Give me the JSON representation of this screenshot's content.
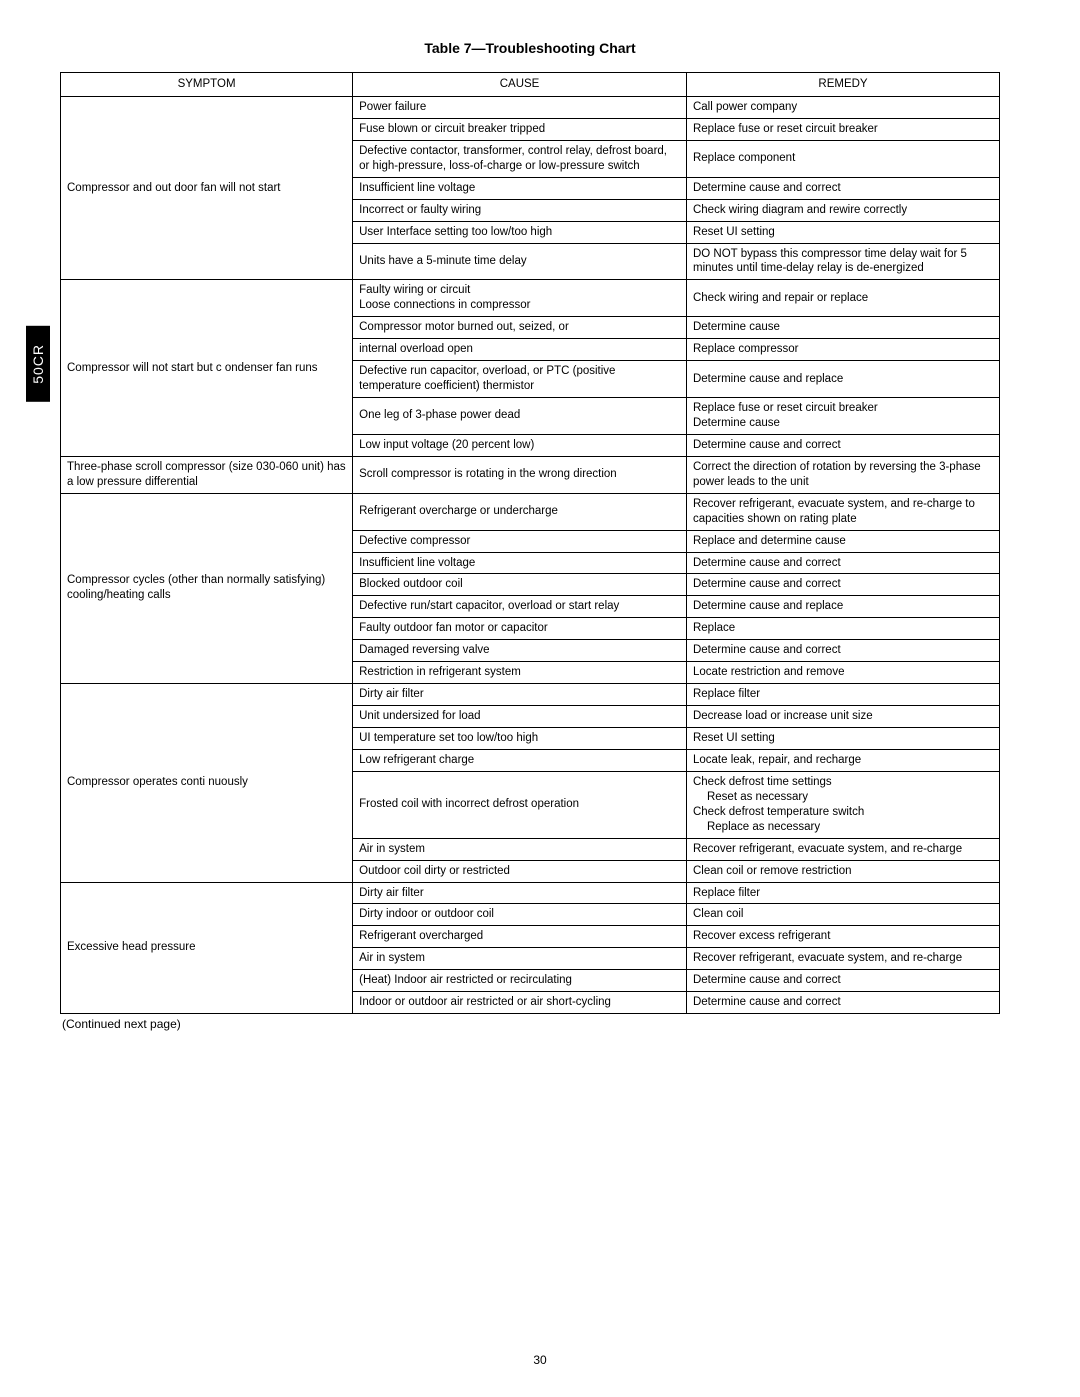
{
  "sideTab": "50CR",
  "title": "Table 7—Troubleshooting Chart",
  "headers": {
    "symptom": "SYMPTOM",
    "cause": "CAUSE",
    "remedy": "REMEDY"
  },
  "rows": [
    {
      "symptom": "Compressor and out   door fan will not start",
      "symptomRowspan": 7,
      "cause": "Power failure",
      "remedy": "Call power company"
    },
    {
      "cause": "Fuse blown or circuit breaker tripped",
      "remedy": "Replace fuse or reset circuit breaker"
    },
    {
      "cause": "Defective contactor, transformer, control relay, defrost board, or high-pressure, loss-of-charge or low-pressure switch",
      "remedy": "Replace component"
    },
    {
      "cause": "Insufficient line voltage",
      "remedy": "Determine cause and correct"
    },
    {
      "cause": "Incorrect or faulty wiring",
      "remedy": "Check wiring diagram and rewire correctly"
    },
    {
      "cause": "User Interface setting too low/too high",
      "remedy": "Reset UI setting"
    },
    {
      "cause": "Units have a 5-minute time delay",
      "remedy": "DO NOT bypass this compressor time delay wait for 5 minutes until time-delay relay is de-energized"
    },
    {
      "symptom": "Compressor will not start but c    ondenser fan runs",
      "symptomRowspan": 6,
      "cause": "Faulty wiring or circuit\nLoose connections in compressor",
      "remedy": "Check wiring and repair or replace"
    },
    {
      "cause": "Compressor motor burned out, seized, or",
      "remedy": "Determine cause"
    },
    {
      "cause": "internal overload open",
      "remedy": "Replace compressor"
    },
    {
      "cause": "Defective run capacitor, overload, or PTC (positive temperature coefficient) thermistor",
      "remedy": "Determine cause and replace"
    },
    {
      "cause": "One leg of 3-phase power dead",
      "remedy": "Replace fuse or reset circuit breaker\nDetermine cause"
    },
    {
      "cause": "Low input voltage (20 percent low)",
      "remedy": "Determine cause and correct"
    },
    {
      "symptom": "Three-phase scroll compressor (size 030-060 unit) has a low pressure differential",
      "symptomRowspan": 1,
      "cause": "Scroll compressor is rotating in the wrong direction",
      "remedy": "Correct the direction of rotation by reversing the 3-phase power leads to the unit"
    },
    {
      "symptom": "Compressor cycles (other than normally satisfying)  cooling/heating calls",
      "symptomRowspan": 8,
      "cause": "Refrigerant overcharge or undercharge",
      "remedy": "Recover refrigerant, evacuate system, and re-charge to capacities shown on rating plate"
    },
    {
      "cause": "Defective compressor",
      "remedy": "Replace and determine cause"
    },
    {
      "cause": "Insufficient line voltage",
      "remedy": "Determine cause and correct"
    },
    {
      "cause": "Blocked outdoor coil",
      "remedy": "Determine cause and correct"
    },
    {
      "cause": "Defective run/start capacitor, overload or start relay",
      "remedy": "Determine cause and replace"
    },
    {
      "cause": "Faulty outdoor fan motor or capacitor",
      "remedy": "Replace"
    },
    {
      "cause": "Damaged reversing valve",
      "remedy": "Determine cause and correct"
    },
    {
      "cause": "Restriction in refrigerant system",
      "remedy": "Locate restriction and remove"
    },
    {
      "symptom": "Compressor operates conti   nuously",
      "symptomRowspan": 7,
      "cause": "Dirty air filter",
      "remedy": "Replace filter"
    },
    {
      "cause": "Unit undersized for load",
      "remedy": "Decrease load or increase unit size"
    },
    {
      "cause": "UI temperature set too low/too high",
      "remedy": "Reset UI setting"
    },
    {
      "cause": "Low refrigerant charge",
      "remedy": "Locate leak, repair, and recharge"
    },
    {
      "cause": "Frosted coil with incorrect defrost operation",
      "remedy": "Check defrost time settings\n   Reset as necessary\nCheck defrost temperature switch\n   Replace as necessary",
      "remedyIndented": true
    },
    {
      "cause": "Air in system",
      "remedy": "Recover refrigerant, evacuate system, and re-charge"
    },
    {
      "cause": "Outdoor coil dirty or restricted",
      "remedy": "Clean coil or remove restriction"
    },
    {
      "symptom": "Excessive head pressure",
      "symptomRowspan": 6,
      "cause": "Dirty air filter",
      "remedy": "Replace filter"
    },
    {
      "cause": "Dirty indoor or outdoor coil",
      "remedy": "Clean coil"
    },
    {
      "cause": "Refrigerant overcharged",
      "remedy": "Recover excess refrigerant"
    },
    {
      "cause": "Air in system",
      "remedy": "Recover refrigerant, evacuate system, and re-charge"
    },
    {
      "cause": "(Heat) Indoor air restricted or recirculating",
      "remedy": "Determine cause and correct"
    },
    {
      "cause": "Indoor or outdoor air restricted or air short-cycling",
      "remedy": "Determine cause and correct"
    }
  ],
  "continued": "(Continued next page)",
  "pageNumber": "30"
}
